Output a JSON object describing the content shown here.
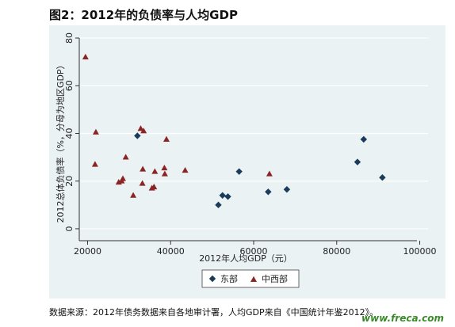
{
  "figure_title": "图2：2012年的负债率与人均GDP",
  "source_note": "数据来源：2012年债务数据来自各地审计署，人均GDP来自《中国统计年鉴2012》。",
  "watermark": "www.freca.com",
  "chart_data": {
    "type": "scatter",
    "xlabel": "2012年人均GDP（元）",
    "ylabel": "2012总体负债率（%，分母为地区GDP）",
    "xlim": [
      18000,
      102000
    ],
    "ylim": [
      -5,
      82
    ],
    "xticks": [
      20000,
      40000,
      60000,
      80000,
      100000
    ],
    "xtick_labels": [
      "20000",
      "40000",
      "60000",
      "80000",
      "100000"
    ],
    "yticks": [
      0,
      20,
      40,
      60,
      80
    ],
    "ytick_labels": [
      "0",
      "20",
      "40",
      "60",
      "80"
    ],
    "grid": "horizontal",
    "legend_position": "bottom",
    "colors": {
      "plot_bg": "#eaf2f3",
      "outer_bg": "#ffffff",
      "east": "#1a3c5a",
      "central_west": "#8b2525",
      "grid": "#ffffff",
      "axis": "#333333"
    },
    "series": [
      {
        "name": "东部",
        "marker": "diamond",
        "points": [
          [
            32000,
            39
          ],
          [
            51500,
            10
          ],
          [
            52500,
            14
          ],
          [
            53800,
            13.5
          ],
          [
            56500,
            24
          ],
          [
            63500,
            15.5
          ],
          [
            68000,
            16.5
          ],
          [
            85000,
            28
          ],
          [
            86500,
            37.5
          ],
          [
            91000,
            21.5
          ]
        ]
      },
      {
        "name": "中西部",
        "marker": "triangle",
        "points": [
          [
            19500,
            72
          ],
          [
            22000,
            40.5
          ],
          [
            21800,
            27
          ],
          [
            27500,
            19.5
          ],
          [
            28200,
            20
          ],
          [
            28500,
            21
          ],
          [
            29200,
            30
          ],
          [
            31000,
            14
          ],
          [
            32800,
            42
          ],
          [
            33500,
            41
          ],
          [
            33300,
            25
          ],
          [
            33200,
            19
          ],
          [
            35500,
            17
          ],
          [
            36000,
            17.5
          ],
          [
            36200,
            24
          ],
          [
            38500,
            25.5
          ],
          [
            38600,
            23
          ],
          [
            39000,
            37.5
          ],
          [
            43500,
            24.5
          ],
          [
            63800,
            23
          ]
        ]
      }
    ]
  }
}
